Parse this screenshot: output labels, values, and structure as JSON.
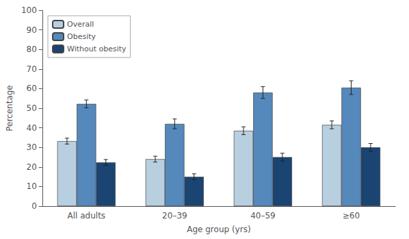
{
  "chart_data": {
    "type": "bar",
    "xlabel": "Age group (yrs)",
    "ylabel": "Percentage",
    "categories": [
      "All adults",
      "20–39",
      "40–59",
      "≥60"
    ],
    "series": [
      {
        "name": "Overall",
        "color": "#b8cfe0",
        "values": [
          33.2,
          24.0,
          38.5,
          41.5
        ],
        "errors": [
          1.5,
          1.5,
          2.0,
          2.0
        ]
      },
      {
        "name": "Obesity",
        "color": "#5588bb",
        "values": [
          52.2,
          42.0,
          58.0,
          60.5
        ],
        "errors": [
          2.0,
          2.5,
          3.0,
          3.5
        ]
      },
      {
        "name": "Without obesity",
        "color": "#1a4472",
        "values": [
          22.3,
          15.0,
          25.0,
          30.0
        ],
        "errors": [
          1.5,
          1.5,
          2.0,
          2.0
        ]
      }
    ],
    "ylim": [
      0,
      100
    ],
    "yticks": [
      0,
      10,
      20,
      30,
      40,
      50,
      60,
      70,
      80,
      90,
      100
    ],
    "grid": false,
    "legend": "upper left"
  }
}
